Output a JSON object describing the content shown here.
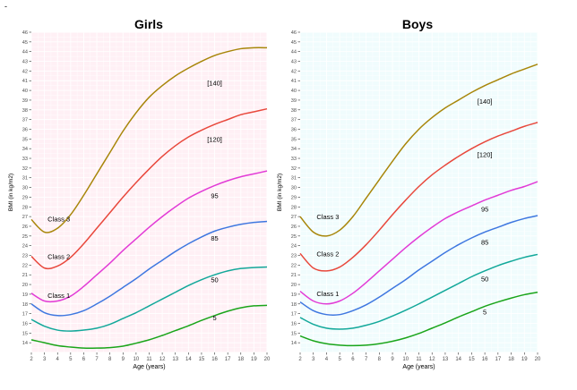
{
  "page": {
    "corner_mark": "-"
  },
  "chart_data": [
    {
      "type": "line",
      "title": "Girls",
      "xlabel": "Age (years)",
      "ylabel": "BMI (in kg/m2)",
      "xlim": [
        2,
        20
      ],
      "ylim": [
        13,
        46
      ],
      "xticks": [
        2,
        3,
        4,
        5,
        6,
        7,
        8,
        9,
        10,
        11,
        12,
        13,
        14,
        15,
        16,
        17,
        18,
        19,
        20
      ],
      "yticks": [
        14,
        15,
        16,
        17,
        18,
        19,
        20,
        21,
        22,
        23,
        24,
        25,
        26,
        27,
        28,
        29,
        30,
        31,
        32,
        33,
        34,
        35,
        36,
        37,
        38,
        39,
        40,
        41,
        42,
        43,
        44,
        45,
        46
      ],
      "grid": true,
      "panel_background": "#fff0f5",
      "grid_color": "#ffffff",
      "series": [
        {
          "name": "5",
          "color": "#1aa51a",
          "x": [
            2,
            3,
            4,
            5,
            6,
            7,
            8,
            9,
            10,
            11,
            12,
            13,
            14,
            15,
            16,
            17,
            18,
            19,
            20
          ],
          "y": [
            14.3,
            14.0,
            13.7,
            13.55,
            13.45,
            13.45,
            13.5,
            13.65,
            13.95,
            14.3,
            14.75,
            15.25,
            15.75,
            16.3,
            16.8,
            17.25,
            17.6,
            17.8,
            17.85
          ]
        },
        {
          "name": "50",
          "color": "#12a89a",
          "x": [
            2,
            3,
            4,
            5,
            6,
            7,
            8,
            9,
            10,
            11,
            12,
            13,
            14,
            15,
            16,
            17,
            18,
            19,
            20
          ],
          "y": [
            16.4,
            15.7,
            15.3,
            15.2,
            15.3,
            15.5,
            15.9,
            16.5,
            17.1,
            17.8,
            18.5,
            19.2,
            19.9,
            20.5,
            21.0,
            21.4,
            21.65,
            21.75,
            21.8
          ]
        },
        {
          "name": "85",
          "color": "#3e77e0",
          "x": [
            2,
            3,
            4,
            5,
            6,
            7,
            8,
            9,
            10,
            11,
            12,
            13,
            14,
            15,
            16,
            17,
            18,
            19,
            20
          ],
          "y": [
            18.0,
            17.1,
            16.8,
            16.9,
            17.3,
            18.0,
            18.8,
            19.7,
            20.6,
            21.6,
            22.5,
            23.4,
            24.2,
            24.9,
            25.5,
            25.9,
            26.2,
            26.4,
            26.5
          ]
        },
        {
          "name": "95",
          "color": "#e23bd6",
          "x": [
            2,
            3,
            4,
            5,
            6,
            7,
            8,
            9,
            10,
            11,
            12,
            13,
            14,
            15,
            16,
            17,
            18,
            19,
            20
          ],
          "y": [
            19.1,
            18.3,
            18.3,
            18.8,
            19.8,
            21.0,
            22.2,
            23.5,
            24.7,
            25.9,
            27.0,
            28.0,
            28.9,
            29.6,
            30.2,
            30.7,
            31.1,
            31.4,
            31.7
          ]
        },
        {
          "name": "[120]",
          "color": "#e8483c",
          "x": [
            2,
            3,
            4,
            5,
            6,
            7,
            8,
            9,
            10,
            11,
            12,
            13,
            14,
            15,
            16,
            17,
            18,
            19,
            20
          ],
          "y": [
            22.9,
            21.7,
            21.9,
            22.8,
            24.2,
            25.8,
            27.4,
            29.0,
            30.5,
            31.9,
            33.2,
            34.3,
            35.2,
            35.9,
            36.5,
            37.0,
            37.5,
            37.8,
            38.1
          ]
        },
        {
          "name": "[140]",
          "color": "#a8860a",
          "x": [
            2,
            3,
            4,
            5,
            6,
            7,
            8,
            9,
            10,
            11,
            12,
            13,
            14,
            15,
            16,
            17,
            18,
            19,
            20
          ],
          "y": [
            26.7,
            25.4,
            25.8,
            27.2,
            29.2,
            31.4,
            33.6,
            35.8,
            37.7,
            39.3,
            40.5,
            41.5,
            42.3,
            43.0,
            43.6,
            44.0,
            44.3,
            44.4,
            44.4
          ]
        }
      ],
      "annotations": [
        {
          "text": "Class 3",
          "x": 4.1,
          "y": 26.8
        },
        {
          "text": "Class 2",
          "x": 4.1,
          "y": 22.9
        },
        {
          "text": "Class 1",
          "x": 4.1,
          "y": 18.9
        },
        {
          "text": "[140]",
          "x": 16.0,
          "y": 40.8
        },
        {
          "text": "[120]",
          "x": 16.0,
          "y": 35.0
        },
        {
          "text": "95",
          "x": 16.0,
          "y": 29.2
        },
        {
          "text": "85",
          "x": 16.0,
          "y": 24.8
        },
        {
          "text": "50",
          "x": 16.0,
          "y": 20.5
        },
        {
          "text": "5",
          "x": 16.0,
          "y": 16.6
        }
      ]
    },
    {
      "type": "line",
      "title": "Boys",
      "xlabel": "Age (years)",
      "ylabel": "BMI (in kg/m2)",
      "xlim": [
        2,
        20
      ],
      "ylim": [
        13,
        46
      ],
      "xticks": [
        2,
        3,
        4,
        5,
        6,
        7,
        8,
        9,
        10,
        11,
        12,
        13,
        14,
        15,
        16,
        17,
        18,
        19,
        20
      ],
      "yticks": [
        14,
        15,
        16,
        17,
        18,
        19,
        20,
        21,
        22,
        23,
        24,
        25,
        26,
        27,
        28,
        29,
        30,
        31,
        32,
        33,
        34,
        35,
        36,
        37,
        38,
        39,
        40,
        41,
        42,
        43,
        44,
        45,
        46
      ],
      "grid": true,
      "panel_background": "#f0fcfd",
      "grid_color": "#ffffff",
      "series": [
        {
          "name": "5",
          "color": "#1aa51a",
          "x": [
            2,
            3,
            4,
            5,
            6,
            7,
            8,
            9,
            10,
            11,
            12,
            13,
            14,
            15,
            16,
            17,
            18,
            19,
            20
          ],
          "y": [
            14.7,
            14.2,
            13.9,
            13.75,
            13.7,
            13.75,
            13.9,
            14.15,
            14.5,
            14.95,
            15.5,
            16.05,
            16.65,
            17.2,
            17.75,
            18.2,
            18.6,
            18.95,
            19.2
          ]
        },
        {
          "name": "50",
          "color": "#12a89a",
          "x": [
            2,
            3,
            4,
            5,
            6,
            7,
            8,
            9,
            10,
            11,
            12,
            13,
            14,
            15,
            16,
            17,
            18,
            19,
            20
          ],
          "y": [
            16.6,
            15.9,
            15.5,
            15.4,
            15.5,
            15.8,
            16.2,
            16.75,
            17.35,
            18.0,
            18.7,
            19.4,
            20.1,
            20.8,
            21.4,
            21.95,
            22.4,
            22.8,
            23.1
          ]
        },
        {
          "name": "85",
          "color": "#3e77e0",
          "x": [
            2,
            3,
            4,
            5,
            6,
            7,
            8,
            9,
            10,
            11,
            12,
            13,
            14,
            15,
            16,
            17,
            18,
            19,
            20
          ],
          "y": [
            18.2,
            17.3,
            16.9,
            16.9,
            17.3,
            17.9,
            18.7,
            19.6,
            20.5,
            21.5,
            22.4,
            23.3,
            24.1,
            24.8,
            25.4,
            25.9,
            26.4,
            26.8,
            27.1
          ]
        },
        {
          "name": "95",
          "color": "#e23bd6",
          "x": [
            2,
            3,
            4,
            5,
            6,
            7,
            8,
            9,
            10,
            11,
            12,
            13,
            14,
            15,
            16,
            17,
            18,
            19,
            20
          ],
          "y": [
            19.3,
            18.3,
            18.0,
            18.3,
            19.1,
            20.2,
            21.4,
            22.6,
            23.8,
            24.9,
            25.9,
            26.8,
            27.5,
            28.1,
            28.7,
            29.2,
            29.7,
            30.1,
            30.6
          ]
        },
        {
          "name": "[120]",
          "color": "#e8483c",
          "x": [
            2,
            3,
            4,
            5,
            6,
            7,
            8,
            9,
            10,
            11,
            12,
            13,
            14,
            15,
            16,
            17,
            18,
            19,
            20
          ],
          "y": [
            23.2,
            21.7,
            21.4,
            21.8,
            22.8,
            24.1,
            25.6,
            27.2,
            28.7,
            30.1,
            31.3,
            32.3,
            33.2,
            34.0,
            34.7,
            35.3,
            35.8,
            36.3,
            36.7
          ]
        },
        {
          "name": "[140]",
          "color": "#a8860a",
          "x": [
            2,
            3,
            4,
            5,
            6,
            7,
            8,
            9,
            10,
            11,
            12,
            13,
            14,
            15,
            16,
            17,
            18,
            19,
            20
          ],
          "y": [
            27.0,
            25.4,
            25.0,
            25.6,
            27.0,
            28.9,
            30.8,
            32.7,
            34.5,
            36.0,
            37.2,
            38.2,
            39.0,
            39.8,
            40.5,
            41.1,
            41.7,
            42.2,
            42.7
          ]
        }
      ],
      "annotations": [
        {
          "text": "Class 3",
          "x": 4.1,
          "y": 27.0
        },
        {
          "text": "Class 2",
          "x": 4.1,
          "y": 23.2
        },
        {
          "text": "Class 1",
          "x": 4.1,
          "y": 19.1
        },
        {
          "text": "[140]",
          "x": 16.0,
          "y": 38.9
        },
        {
          "text": "[120]",
          "x": 16.0,
          "y": 33.4
        },
        {
          "text": "95",
          "x": 16.0,
          "y": 27.8
        },
        {
          "text": "85",
          "x": 16.0,
          "y": 24.4
        },
        {
          "text": "50",
          "x": 16.0,
          "y": 20.6
        },
        {
          "text": "5",
          "x": 16.0,
          "y": 17.2
        }
      ]
    }
  ]
}
